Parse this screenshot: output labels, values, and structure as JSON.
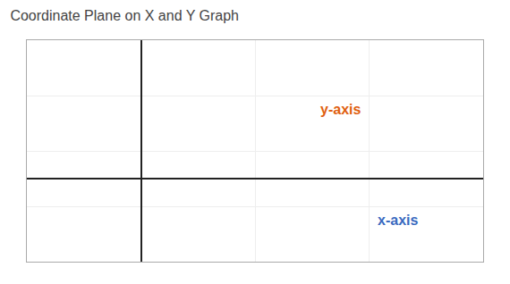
{
  "chart_data": {
    "type": "coordinate_plane",
    "title": "Coordinate Plane on X and Y Graph",
    "xlim": [
      -2,
      6
    ],
    "ylim": [
      -3,
      5
    ],
    "xticks": [
      -2,
      0,
      2,
      4,
      6
    ],
    "yticks": [
      -3,
      -1,
      1,
      3,
      5
    ],
    "grid": true,
    "tick_labels": false,
    "annotations": [
      {
        "text": "y-axis",
        "color": "#e06010"
      },
      {
        "text": "x-axis",
        "color": "#3a6abf"
      }
    ]
  }
}
